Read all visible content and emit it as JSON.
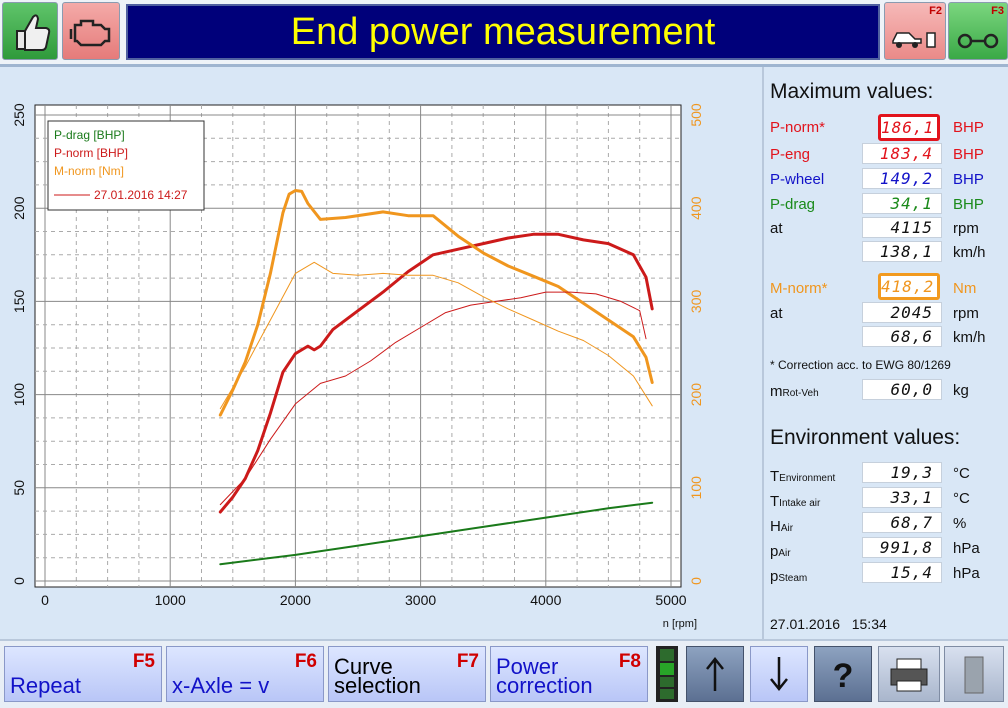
{
  "header": {
    "title": "End power measurement",
    "f2_key": "F2",
    "f3_key": "F3"
  },
  "chart_data": {
    "type": "line",
    "legend": {
      "placement": "top-left",
      "entries": [
        "P-drag [BHP]",
        "P-norm [BHP]",
        "M-norm [Nm]"
      ],
      "reference": "27.01.2016 14:27"
    },
    "xlabel": "n [rpm]",
    "xlim": [
      0,
      5000
    ],
    "x_ticks": [
      "0",
      "1000",
      "2000",
      "3000",
      "4000",
      "5000"
    ],
    "left_ylim": [
      0,
      250
    ],
    "left_ticks": [
      "0",
      "50",
      "100",
      "150",
      "200",
      "250"
    ],
    "right_ylim": [
      0,
      500
    ],
    "right_ticks": [
      "0",
      "100",
      "200",
      "300",
      "400",
      "500"
    ],
    "grid": true,
    "series": [
      {
        "name": "P-drag [BHP]",
        "color": "#1a7a1a",
        "axis": "left",
        "width": 2,
        "x": [
          1400,
          2000,
          2500,
          3000,
          3500,
          4000,
          4500,
          4850
        ],
        "y": [
          9,
          14,
          19,
          24,
          29,
          34,
          39,
          42
        ]
      },
      {
        "name": "P-norm [BHP]",
        "color": "#cc1a1a",
        "axis": "left",
        "width": 3,
        "x": [
          1400,
          1500,
          1600,
          1700,
          1800,
          1900,
          2000,
          2100,
          2150,
          2200,
          2300,
          2500,
          2700,
          2900,
          3100,
          3300,
          3500,
          3700,
          3900,
          4100,
          4300,
          4500,
          4700,
          4800,
          4850
        ],
        "y": [
          37,
          45,
          55,
          70,
          90,
          112,
          122,
          126,
          124,
          126,
          135,
          145,
          155,
          166,
          175,
          178,
          181,
          184,
          186,
          186,
          183,
          181,
          175,
          163,
          146
        ]
      },
      {
        "name": "M-norm [Nm]",
        "color": "#f0961e",
        "axis": "right",
        "width": 3,
        "x": [
          1400,
          1500,
          1600,
          1700,
          1800,
          1900,
          1950,
          2000,
          2050,
          2100,
          2200,
          2400,
          2700,
          2900,
          3100,
          3300,
          3500,
          3700,
          3900,
          4100,
          4300,
          4500,
          4700,
          4800,
          4850
        ],
        "y": [
          178,
          205,
          235,
          275,
          330,
          395,
          415,
          419,
          418,
          405,
          388,
          390,
          396,
          392,
          392,
          370,
          352,
          338,
          327,
          316,
          298,
          280,
          262,
          240,
          213
        ]
      },
      {
        "name": "P-norm reference",
        "color": "#cc1a1a",
        "axis": "left",
        "width": 1,
        "x": [
          1400,
          1600,
          1800,
          2000,
          2200,
          2400,
          2600,
          2800,
          3000,
          3200,
          3400,
          3600,
          3800,
          4000,
          4200,
          4400,
          4600,
          4750,
          4800
        ],
        "y": [
          41,
          55,
          76,
          95,
          106,
          110,
          118,
          128,
          136,
          144,
          148,
          150,
          152,
          155,
          155,
          154,
          150,
          145,
          130
        ]
      },
      {
        "name": "M-norm reference",
        "color": "#f0961e",
        "axis": "right",
        "width": 1,
        "x": [
          1400,
          1600,
          1800,
          2000,
          2150,
          2300,
          2500,
          2700,
          2900,
          3100,
          3300,
          3500,
          3700,
          3900,
          4100,
          4300,
          4500,
          4700,
          4850
        ],
        "y": [
          185,
          230,
          280,
          330,
          342,
          330,
          328,
          330,
          328,
          328,
          320,
          305,
          292,
          280,
          268,
          258,
          242,
          220,
          188
        ]
      }
    ]
  },
  "maximum_values": {
    "title": "Maximum values:",
    "p_norm": {
      "label": "P-norm*",
      "value": "186,1",
      "unit": "BHP",
      "color": "#e2131c"
    },
    "p_eng": {
      "label": "P-eng",
      "value": "183,4",
      "unit": "BHP",
      "color": "#e2131c"
    },
    "p_wheel": {
      "label": "P-wheel",
      "value": "149,2",
      "unit": "BHP",
      "color": "#1212c8"
    },
    "p_drag": {
      "label": "P-drag",
      "value": "34,1",
      "unit": "BHP",
      "color": "#1a8a1a"
    },
    "at_rpm": {
      "label": "at",
      "value": "4115",
      "unit": "rpm"
    },
    "at_kmh": {
      "value": "138,1",
      "unit": "km/h"
    },
    "m_norm": {
      "label": "M-norm*",
      "value": "418,2",
      "unit": "Nm",
      "color": "#f0961e"
    },
    "m_at_rpm": {
      "label": "at",
      "value": "2045",
      "unit": "rpm"
    },
    "m_at_kmh": {
      "value": "68,6",
      "unit": "km/h"
    },
    "correction_note": "* Correction acc. to EWG 80/1269",
    "m_rot": {
      "label_main": "m",
      "label_sub": "Rot-Veh",
      "value": "60,0",
      "unit": "kg"
    }
  },
  "environment": {
    "title": "Environment values:",
    "rows": [
      {
        "main": "T",
        "sub": "Environment",
        "value": "19,3",
        "unit": "°C"
      },
      {
        "main": "T",
        "sub": "Intake air",
        "value": "33,1",
        "unit": "°C"
      },
      {
        "main": "H",
        "sub": "Air",
        "value": "68,7",
        "unit": "%"
      },
      {
        "main": "p",
        "sub": "Air",
        "value": "991,8",
        "unit": "hPa"
      },
      {
        "main": "p",
        "sub": "Steam",
        "value": "15,4",
        "unit": "hPa"
      }
    ]
  },
  "datetime": "27.01.2016   15:34",
  "toolbar": {
    "repeat": {
      "label": "Repeat",
      "key": "F5"
    },
    "x_axle": {
      "label": "x-Axle = v",
      "key": "F6"
    },
    "curve_selection": {
      "line1": "Curve",
      "line2": "selection",
      "key": "F7"
    },
    "power_correction": {
      "line1": "Power",
      "line2": "correction",
      "key": "F8"
    }
  },
  "icons": [
    "thumbs-up-icon",
    "engine-icon",
    "car-on-dyno-icon",
    "wheels-icon",
    "traffic-light-icon",
    "arrow-up-icon",
    "arrow-down-icon",
    "help-icon",
    "printer-icon",
    "door-icon"
  ]
}
